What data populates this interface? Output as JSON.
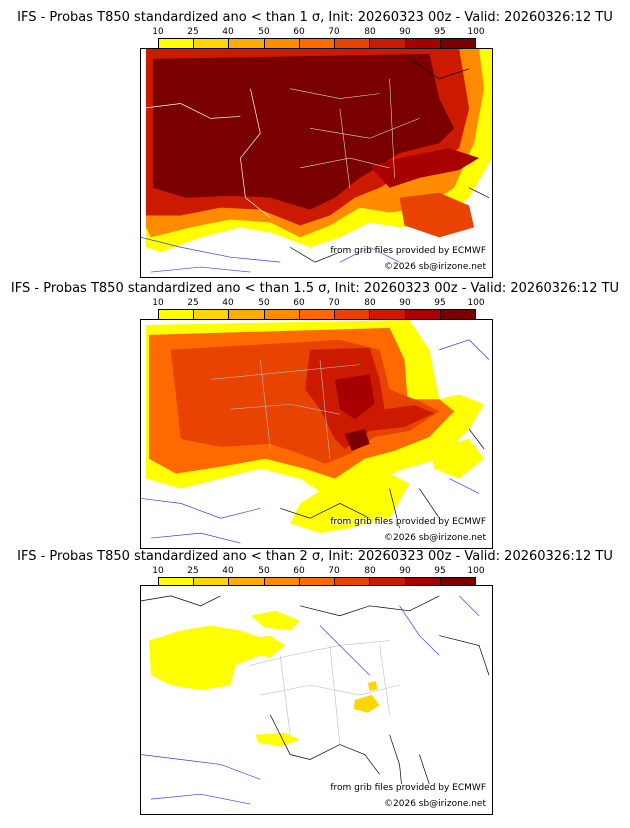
{
  "colorbar": {
    "ticks": [
      "10",
      "25",
      "40",
      "50",
      "60",
      "70",
      "80",
      "90",
      "95",
      "100"
    ],
    "colors": [
      "#ffff00",
      "#ffd600",
      "#ffab00",
      "#ff8c00",
      "#ff6a00",
      "#e84300",
      "#cc1a00",
      "#a80000",
      "#7a0000"
    ]
  },
  "credit_source": "from grib files provided by ECMWF",
  "credit_copyright": "©2026 sb@irizone.net",
  "panels": [
    {
      "title": "IFS - Probas T850  standardized ano < than 1 σ, Init: 20260323 00z - Valid: 20260326:12 TU"
    },
    {
      "title": "IFS - Probas T850  standardized ano < than 1.5 σ, Init: 20260323 00z - Valid: 20260326:12 TU"
    },
    {
      "title": "IFS - Probas T850  standardized ano < than 2 σ, Init: 20260323 00z - Valid: 20260326:12 TU"
    }
  ]
}
